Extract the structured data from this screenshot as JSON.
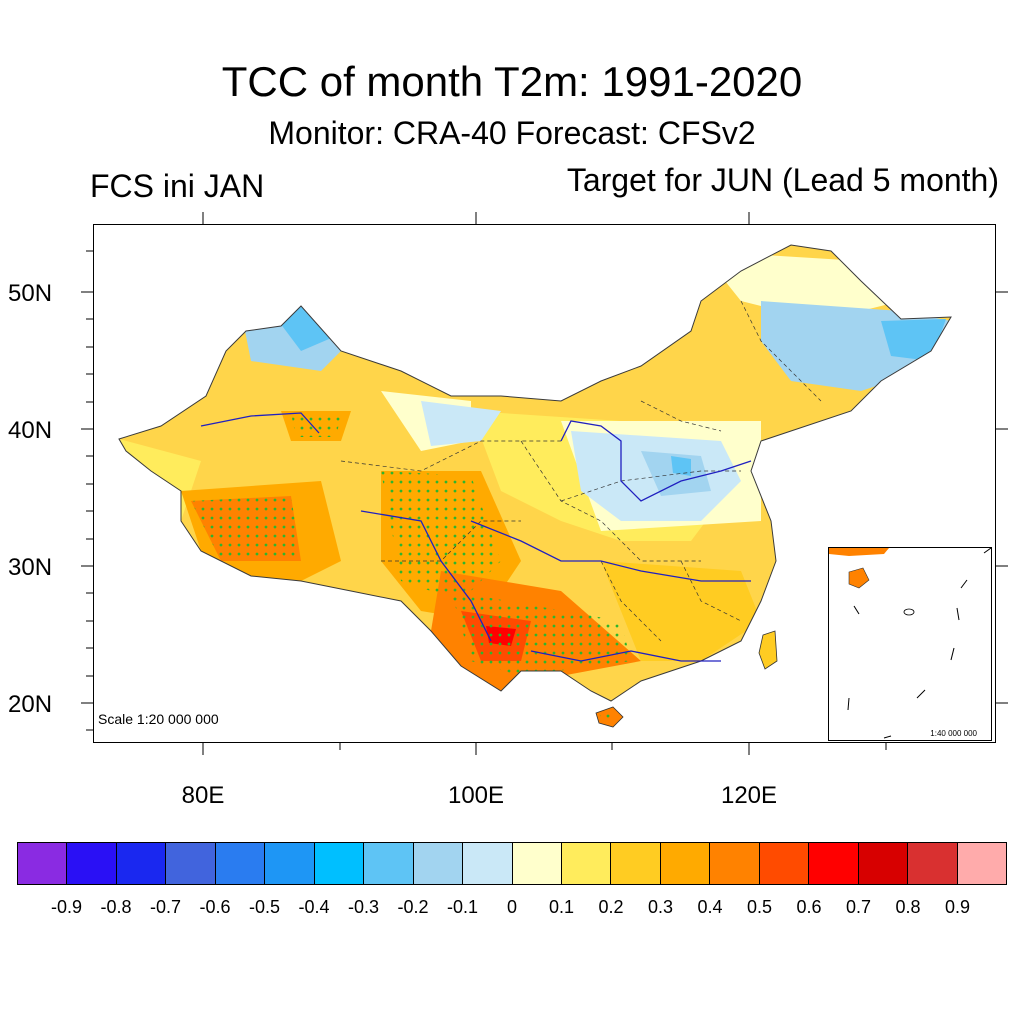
{
  "title": "TCC of month T2m: 1991-2020",
  "subtitle": "Monitor: CRA-40   Forecast: CFSv2",
  "left_label": "FCS ini JAN",
  "right_label": "Target for JUN (Lead 5 month)",
  "scale_label": "Scale 1:20 000 000",
  "inset_scale_label": "1:40 000 000",
  "lat_labels": [
    "50N",
    "40N",
    "30N",
    "20N"
  ],
  "lon_labels": [
    "80E",
    "100E",
    "120E"
  ],
  "colorbar": {
    "colors": [
      "#8a2be2",
      "#2a10f5",
      "#1a28f0",
      "#4164dd",
      "#2a7cf0",
      "#1e96f5",
      "#00bfff",
      "#5ec4f5",
      "#a2d4f0",
      "#cae8f7",
      "#ffffcc",
      "#ffec5c",
      "#ffcc22",
      "#ffaa00",
      "#ff8200",
      "#ff4b00",
      "#ff0000",
      "#d70000",
      "#d93030",
      "#ffabab"
    ],
    "labels": [
      "-0.9",
      "-0.8",
      "-0.7",
      "-0.6",
      "-0.5",
      "-0.4",
      "-0.3",
      "-0.2",
      "-0.1",
      "0",
      "0.1",
      "0.2",
      "0.3",
      "0.4",
      "0.5",
      "0.6",
      "0.7",
      "0.8",
      "0.9"
    ]
  }
}
